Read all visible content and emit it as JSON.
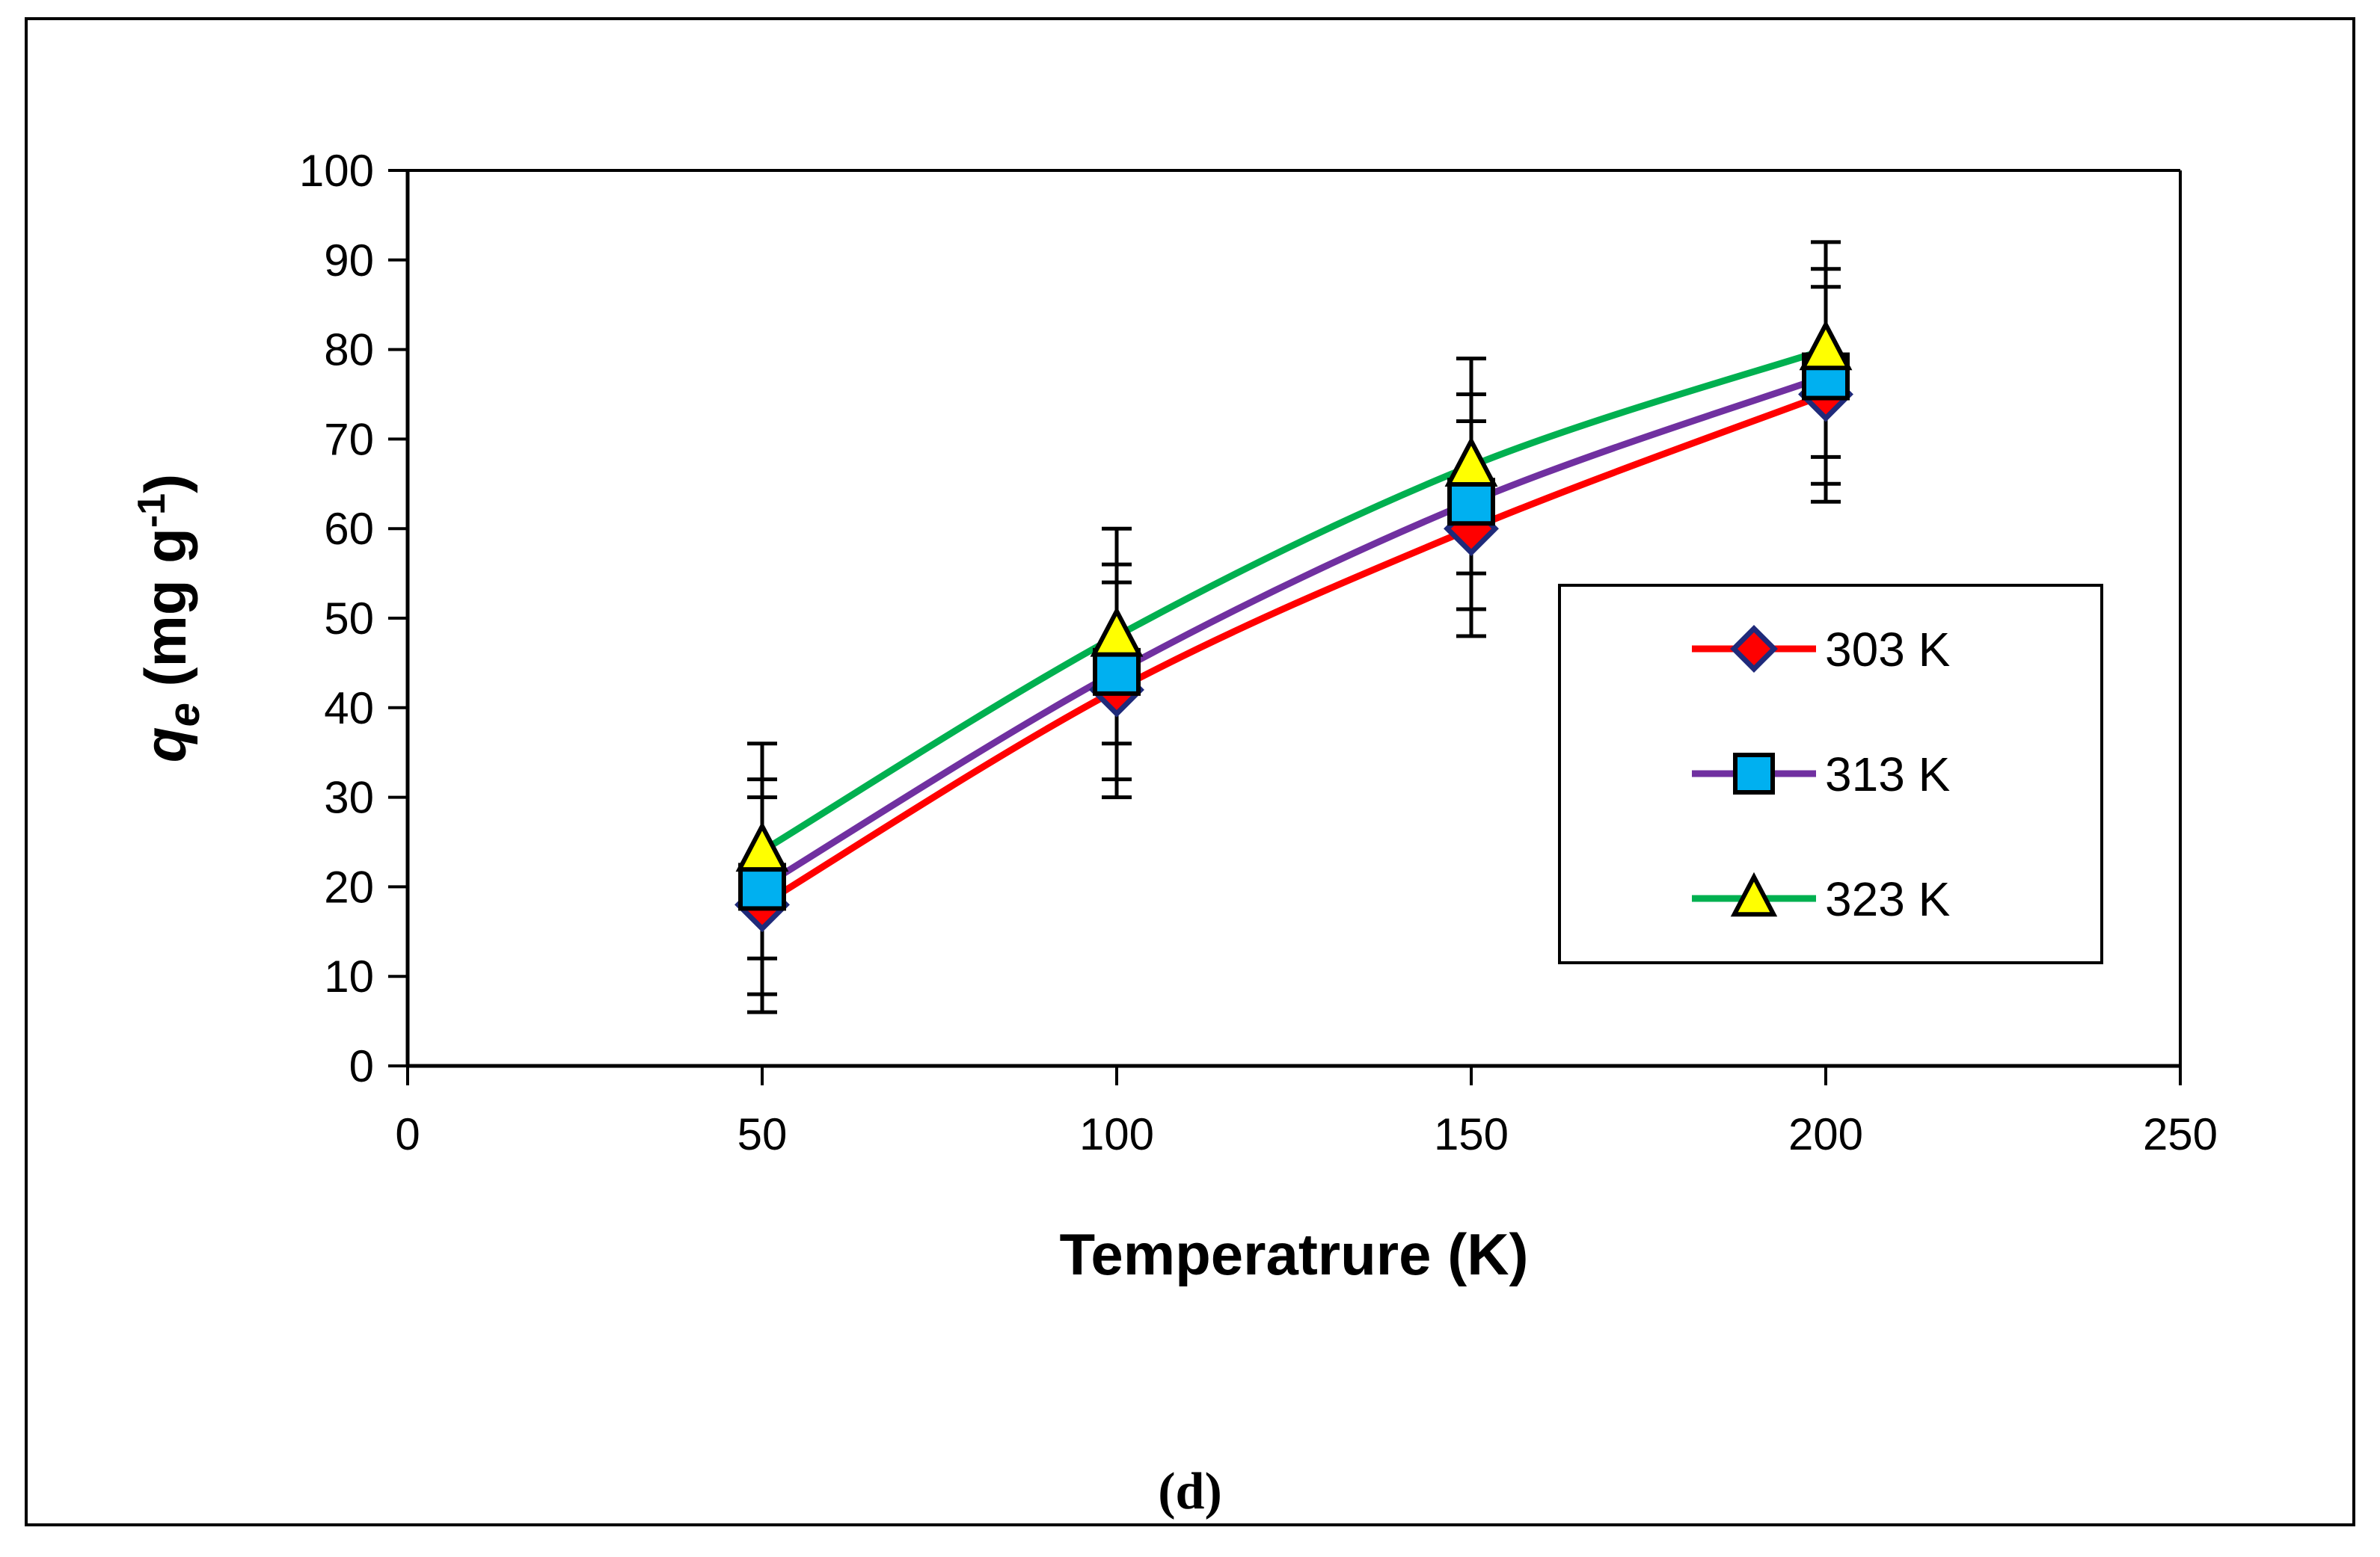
{
  "chart_data": {
    "type": "line",
    "title": "",
    "caption": "(d)",
    "xlabel": "Temperatrure (K)",
    "ylabel": {
      "symbol": "q",
      "subscript": "e",
      "units_prefix": " (mg g",
      "units_exponent": "-1",
      "units_suffix": ")"
    },
    "xlim": [
      0,
      250
    ],
    "ylim": [
      0,
      100
    ],
    "xticks": [
      0,
      50,
      100,
      150,
      200,
      250
    ],
    "yticks": [
      0,
      10,
      20,
      30,
      40,
      50,
      60,
      70,
      80,
      90,
      100
    ],
    "x": [
      50,
      100,
      150,
      200
    ],
    "series": [
      {
        "name": "303 K",
        "line_color": "#ff0000",
        "marker": "diamond",
        "marker_fill": "#ff0000",
        "marker_stroke": "#1f2a7a",
        "values": [
          18,
          42,
          60,
          75
        ],
        "error": [
          12,
          12,
          12,
          12
        ]
      },
      {
        "name": "313 K",
        "line_color": "#7030a0",
        "marker": "square",
        "marker_fill": "#00b0f0",
        "marker_stroke": "#000000",
        "values": [
          20,
          44,
          63,
          77
        ],
        "error": [
          12,
          12,
          12,
          12
        ]
      },
      {
        "name": "323 K",
        "line_color": "#00b050",
        "marker": "triangle",
        "marker_fill": "#ffff00",
        "marker_stroke": "#000000",
        "values": [
          24,
          48,
          67,
          80
        ],
        "error": [
          12,
          12,
          12,
          12
        ]
      }
    ],
    "legend": {
      "position": "right",
      "entries": [
        "303 K",
        "313 K",
        "323 K"
      ]
    },
    "grid": false
  }
}
